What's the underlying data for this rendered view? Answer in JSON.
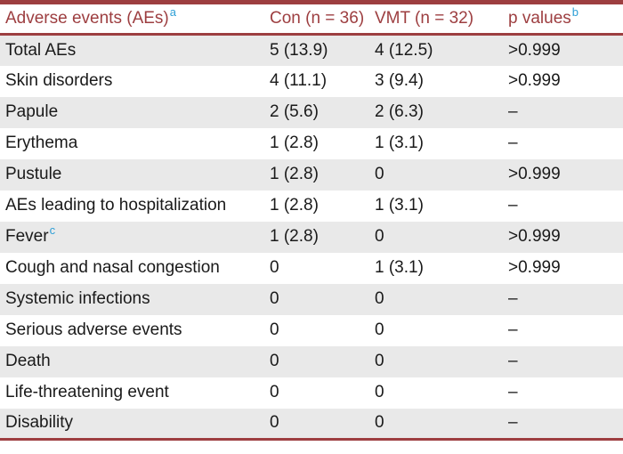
{
  "colors": {
    "accent_maroon": "#9d3e40",
    "superscript_blue": "#2e9fd6",
    "row_stripe": "#e9e9e9",
    "text": "#1a1a1a"
  },
  "chart_data": {
    "type": "table",
    "title": "Adverse events (AEs)",
    "columns": [
      "Adverse events (AEs)",
      "Con (n = 36)",
      "VMT (n = 32)",
      "p values"
    ],
    "rows": [
      [
        "Total AEs",
        "5 (13.9)",
        "4 (12.5)",
        ">0.999"
      ],
      [
        "Skin disorders",
        "4 (11.1)",
        "3 (9.4)",
        ">0.999"
      ],
      [
        "Papule",
        "2 (5.6)",
        "2 (6.3)",
        "–"
      ],
      [
        "Erythema",
        "1 (2.8)",
        "1 (3.1)",
        "–"
      ],
      [
        "Pustule",
        "1 (2.8)",
        "0",
        ">0.999"
      ],
      [
        "AEs leading to hospitalization",
        "1 (2.8)",
        "1 (3.1)",
        "–"
      ],
      [
        "Fever",
        "1 (2.8)",
        "0",
        ">0.999"
      ],
      [
        "Cough and nasal congestion",
        "0",
        "1 (3.1)",
        ">0.999"
      ],
      [
        "Systemic infections",
        "0",
        "0",
        "–"
      ],
      [
        "Serious adverse events",
        "0",
        "0",
        "–"
      ],
      [
        "Death",
        "0",
        "0",
        "–"
      ],
      [
        "Life-threatening event",
        "0",
        "0",
        "–"
      ],
      [
        "Disability",
        "0",
        "0",
        "–"
      ]
    ]
  },
  "table": {
    "columns": [
      {
        "label": "Adverse events (AEs)",
        "sup": "a"
      },
      {
        "label": "Con (n = 36)",
        "sup": ""
      },
      {
        "label": "VMT (n = 32)",
        "sup": ""
      },
      {
        "label": "p values",
        "sup": "b"
      }
    ],
    "rows": [
      {
        "name": "Total AEs",
        "sup": "",
        "con": "5 (13.9)",
        "vmt": "4 (12.5)",
        "p": ">0.999"
      },
      {
        "name": "Skin disorders",
        "sup": "",
        "con": "4 (11.1)",
        "vmt": "3 (9.4)",
        "p": ">0.999"
      },
      {
        "name": "Papule",
        "sup": "",
        "con": "2 (5.6)",
        "vmt": "2 (6.3)",
        "p": "–"
      },
      {
        "name": "Erythema",
        "sup": "",
        "con": "1 (2.8)",
        "vmt": "1 (3.1)",
        "p": "–"
      },
      {
        "name": "Pustule",
        "sup": "",
        "con": "1 (2.8)",
        "vmt": "0",
        "p": ">0.999"
      },
      {
        "name": "AEs leading to hospitalization",
        "sup": "",
        "con": "1 (2.8)",
        "vmt": "1 (3.1)",
        "p": "–"
      },
      {
        "name": "Fever",
        "sup": "c",
        "con": "1 (2.8)",
        "vmt": "0",
        "p": ">0.999"
      },
      {
        "name": "Cough and nasal congestion",
        "sup": "",
        "con": "0",
        "vmt": "1 (3.1)",
        "p": ">0.999"
      },
      {
        "name": "Systemic infections",
        "sup": "",
        "con": "0",
        "vmt": "0",
        "p": "–"
      },
      {
        "name": "Serious adverse events",
        "sup": "",
        "con": "0",
        "vmt": "0",
        "p": "–"
      },
      {
        "name": "Death",
        "sup": "",
        "con": "0",
        "vmt": "0",
        "p": "–"
      },
      {
        "name": "Life-threatening event",
        "sup": "",
        "con": "0",
        "vmt": "0",
        "p": "–"
      },
      {
        "name": "Disability",
        "sup": "",
        "con": "0",
        "vmt": "0",
        "p": "–"
      }
    ]
  }
}
